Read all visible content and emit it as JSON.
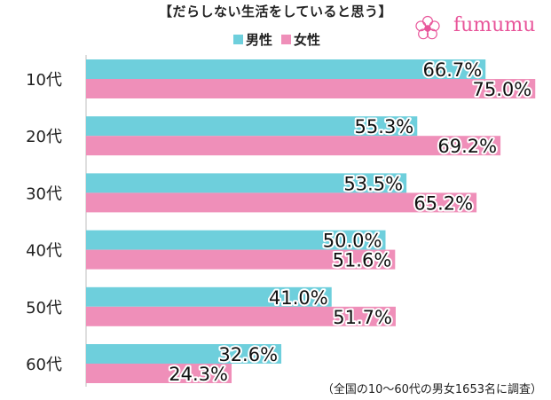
{
  "title": "【だらしない生活をしていると思う】",
  "brand": {
    "name": "fumumu",
    "color": "#e8559a"
  },
  "legend": [
    {
      "label": "男性",
      "color": "#6ecfdc"
    },
    {
      "label": "女性",
      "color": "#ef8fb9"
    }
  ],
  "footnote": "（全国の10～60代の男女1653名に調査）",
  "chart_data": {
    "type": "bar",
    "orientation": "horizontal",
    "categories": [
      "10代",
      "20代",
      "30代",
      "40代",
      "50代",
      "60代"
    ],
    "series": [
      {
        "name": "男性",
        "values": [
          66.7,
          55.3,
          53.5,
          50.0,
          41.0,
          32.6
        ],
        "labels": [
          "66.7%",
          "55.3%",
          "53.5%",
          "50.0%",
          "41.0%",
          "32.6%"
        ]
      },
      {
        "name": "女性",
        "values": [
          75.0,
          69.2,
          65.2,
          51.6,
          51.7,
          24.3
        ],
        "labels": [
          "75.0%",
          "69.2%",
          "65.2%",
          "51.6%",
          "51.7%",
          "24.3%"
        ]
      }
    ],
    "xlim": [
      0,
      100
    ],
    "grid": false,
    "legend_position": "top"
  }
}
